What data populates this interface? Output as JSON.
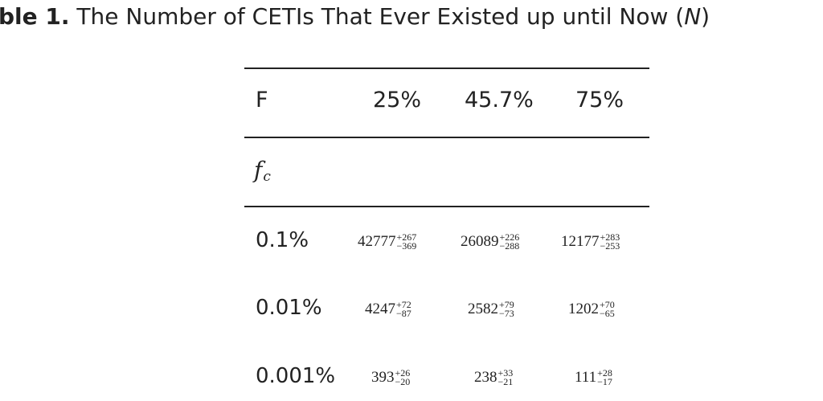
{
  "caption": {
    "label": "ble 1.",
    "text": " The Number of CETIs That Ever Existed up until Now (",
    "symbol": "N",
    "close": ")"
  },
  "table": {
    "header": {
      "row_label": "F",
      "columns": [
        "25%",
        "45.7%",
        "75%"
      ]
    },
    "subheader": {
      "symbol": "f",
      "subscript": "c"
    },
    "rows": [
      {
        "label": "0.1%",
        "cells": [
          {
            "value": "42777",
            "plus": "+267",
            "minus": "−369"
          },
          {
            "value": "26089",
            "plus": "+226",
            "minus": "−288"
          },
          {
            "value": "12177",
            "plus": "+283",
            "minus": "−253"
          }
        ]
      },
      {
        "label": "0.01%",
        "cells": [
          {
            "value": "4247",
            "plus": "+72",
            "minus": "−87"
          },
          {
            "value": "2582",
            "plus": "+79",
            "minus": "−73"
          },
          {
            "value": "1202",
            "plus": "+70",
            "minus": "−65"
          }
        ]
      },
      {
        "label": "0.001%",
        "cells": [
          {
            "value": "393",
            "plus": "+26",
            "minus": "−20"
          },
          {
            "value": "238",
            "plus": "+33",
            "minus": "−21"
          },
          {
            "value": "111",
            "plus": "+28",
            "minus": "−17"
          }
        ]
      }
    ]
  }
}
